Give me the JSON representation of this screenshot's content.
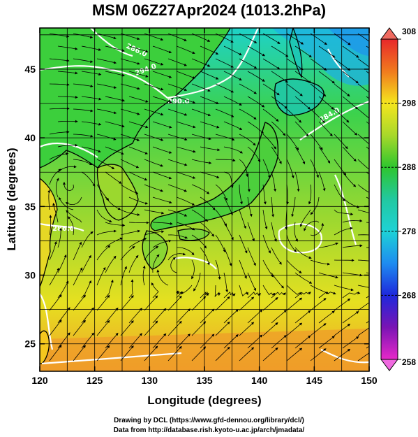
{
  "title": "MSM 06Z27Apr2024 (1013.2hPa)",
  "map": {
    "lon_range": [
      120,
      150
    ],
    "lat_range": [
      23,
      48
    ],
    "x_ticks": [
      "120",
      "125",
      "130",
      "135",
      "140",
      "145",
      "150"
    ],
    "y_ticks": [
      "25",
      "30",
      "35",
      "40",
      "45"
    ],
    "xlabel": "Longitude (degrees)",
    "ylabel": "Latitude  (degrees)",
    "graticule_step_deg": 2.5,
    "contour_labels": [
      "294.0",
      "290.0",
      "286.0",
      "284.0",
      "286.0"
    ]
  },
  "colorbar": {
    "min": 258,
    "max": 308,
    "tick_labels": [
      "308",
      "298",
      "288",
      "278",
      "268",
      "258"
    ],
    "colors": {
      "308": "#e8282a",
      "303": "#f07a1e",
      "298": "#f5e61e",
      "293": "#a8d82a",
      "288": "#2ec62e",
      "283": "#22c8a0",
      "278": "#1ed2d6",
      "273": "#1e8cf0",
      "268": "#1e28dc",
      "263": "#7a14b4",
      "258": "#e628c8"
    }
  },
  "credits": {
    "line1": "Drawing by DCL (https://www.gfd-dennou.org/library/dcl/)",
    "line2": "Data from http://database.rish.kyoto-u.ac.jp/arch/jmadata/"
  }
}
